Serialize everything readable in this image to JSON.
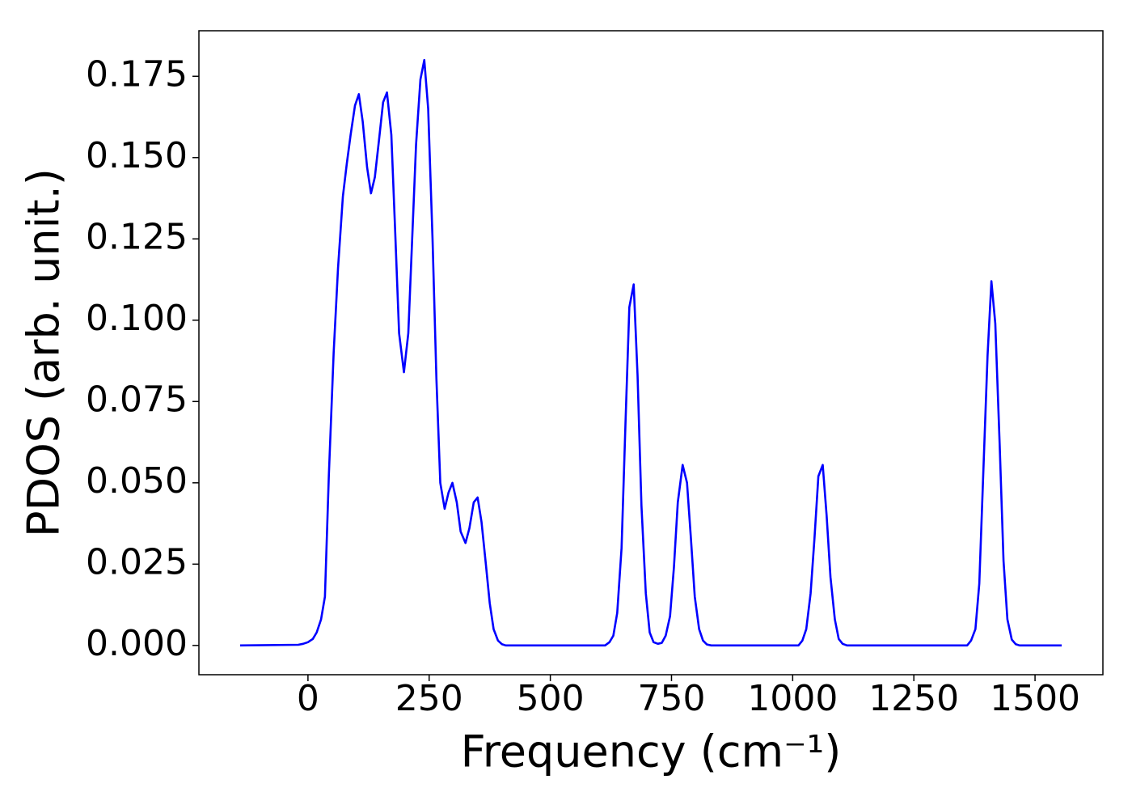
{
  "chart_data": {
    "type": "line",
    "xlabel": "Frequency (cm⁻¹)",
    "ylabel": "PDOS (arb. unit.)",
    "xlim": [
      -225,
      1640
    ],
    "ylim": [
      -0.009,
      0.189
    ],
    "xticks": [
      0,
      250,
      500,
      750,
      1000,
      1250,
      1500
    ],
    "yticks": [
      {
        "value": 0,
        "label": "0.000"
      },
      {
        "value": 0.025,
        "label": "0.025"
      },
      {
        "value": 0.05,
        "label": "0.050"
      },
      {
        "value": 0.075,
        "label": "0.075"
      },
      {
        "value": 0.1,
        "label": "0.100"
      },
      {
        "value": 0.125,
        "label": "0.125"
      },
      {
        "value": 0.15,
        "label": "0.150"
      },
      {
        "value": 0.175,
        "label": "0.175"
      }
    ],
    "grid": false,
    "series": [
      {
        "color": "#0000ff",
        "x": [
          -140,
          -20,
          -10,
          0,
          10,
          18,
          27,
          35,
          43,
          53,
          62,
          72,
          80,
          88,
          97,
          105,
          113,
          122,
          130,
          138,
          147,
          155,
          163,
          172,
          180,
          188,
          198,
          207,
          215,
          223,
          232,
          240,
          248,
          257,
          265,
          273,
          282,
          290,
          298,
          307,
          315,
          325,
          333,
          342,
          350,
          358,
          367,
          375,
          383,
          392,
          400,
          408,
          613,
          622,
          630,
          638,
          647,
          655,
          663,
          672,
          680,
          688,
          697,
          705,
          713,
          722,
          730,
          738,
          747,
          755,
          763,
          773,
          782,
          790,
          798,
          807,
          815,
          823,
          832,
          1012,
          1020,
          1028,
          1037,
          1045,
          1053,
          1062,
          1070,
          1078,
          1087,
          1095,
          1103,
          1112,
          1360,
          1368,
          1377,
          1385,
          1393,
          1402,
          1410,
          1418,
          1427,
          1435,
          1443,
          1452,
          1460,
          1468,
          1555
        ],
        "values": [
          0,
          0.0002,
          0.0005,
          0.001,
          0.002,
          0.004,
          0.008,
          0.015,
          0.052,
          0.09,
          0.116,
          0.138,
          0.148,
          0.157,
          0.166,
          0.1695,
          0.161,
          0.147,
          0.139,
          0.144,
          0.156,
          0.167,
          0.17,
          0.157,
          0.127,
          0.096,
          0.084,
          0.096,
          0.125,
          0.154,
          0.174,
          0.18,
          0.165,
          0.125,
          0.082,
          0.05,
          0.042,
          0.047,
          0.05,
          0.044,
          0.035,
          0.0315,
          0.036,
          0.044,
          0.0455,
          0.038,
          0.025,
          0.013,
          0.005,
          0.0015,
          0.0004,
          0,
          0,
          0.001,
          0.003,
          0.01,
          0.03,
          0.068,
          0.104,
          0.111,
          0.083,
          0.043,
          0.016,
          0.004,
          0.001,
          0.0005,
          0.0008,
          0.003,
          0.009,
          0.024,
          0.044,
          0.0555,
          0.05,
          0.033,
          0.015,
          0.005,
          0.0015,
          0.0003,
          0,
          0,
          0.0015,
          0.005,
          0.016,
          0.033,
          0.052,
          0.0555,
          0.04,
          0.021,
          0.008,
          0.002,
          0.0005,
          0,
          0,
          0.0015,
          0.005,
          0.019,
          0.052,
          0.089,
          0.112,
          0.099,
          0.062,
          0.026,
          0.008,
          0.0018,
          0.0004,
          0,
          0
        ]
      }
    ]
  }
}
